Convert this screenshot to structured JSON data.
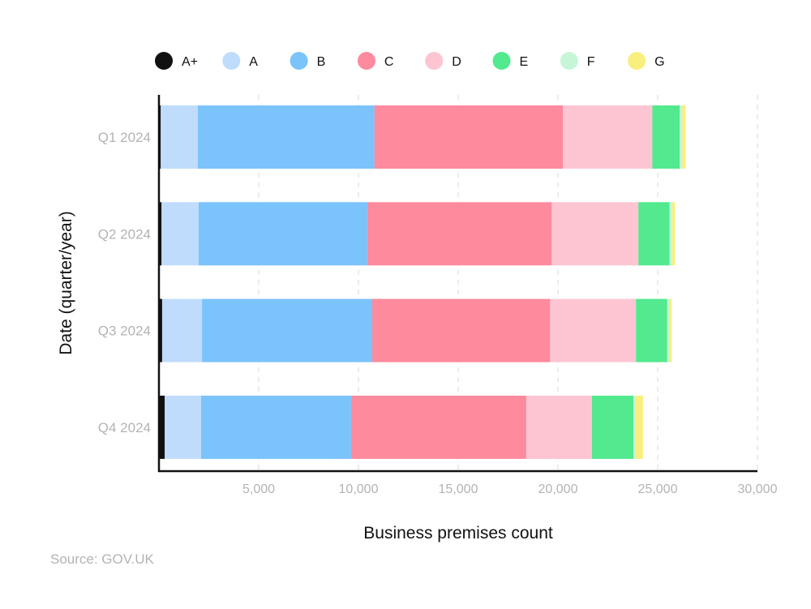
{
  "chart_data": {
    "type": "bar",
    "orientation": "horizontal",
    "stacked": true,
    "categories": [
      "Q1 2024",
      "Q2 2024",
      "Q3 2024",
      "Q4 2024"
    ],
    "series": [
      {
        "name": "A+",
        "color": "#111111",
        "values": [
          90,
          130,
          160,
          290
        ]
      },
      {
        "name": "A",
        "color": "#c0dcfc",
        "values": [
          1860,
          1860,
          2000,
          1820
        ]
      },
      {
        "name": "B",
        "color": "#7bc3fb",
        "values": [
          8850,
          8450,
          8530,
          7520
        ]
      },
      {
        "name": "C",
        "color": "#fd8a9d",
        "values": [
          9450,
          9250,
          8920,
          8780
        ]
      },
      {
        "name": "D",
        "color": "#fdc5d2",
        "values": [
          4480,
          4340,
          4300,
          3290
        ]
      },
      {
        "name": "E",
        "color": "#52e98f",
        "values": [
          1370,
          1560,
          1570,
          2080
        ]
      },
      {
        "name": "F",
        "color": "#c6f6d7",
        "values": [
          130,
          130,
          110,
          100
        ]
      },
      {
        "name": "G",
        "color": "#f8ef7e",
        "values": [
          160,
          150,
          110,
          380
        ]
      }
    ],
    "xlabel": "Business premises count",
    "ylabel": "Date (quarter/year)",
    "xlim": [
      0,
      30000
    ],
    "xticks": [
      5000,
      10000,
      15000,
      20000,
      25000,
      30000
    ],
    "xtick_labels": [
      "5,000",
      "10,000",
      "15,000",
      "20,000",
      "25,000",
      "30,000"
    ],
    "grid": true,
    "legend_position": "top"
  },
  "source": "Source: GOV.UK"
}
